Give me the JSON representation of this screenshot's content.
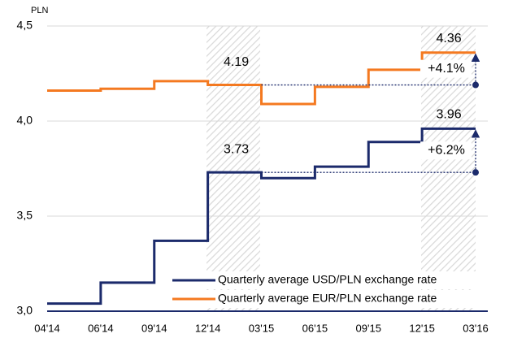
{
  "chart_data": {
    "type": "step",
    "y_label": "PLN",
    "categories": [
      "04'14",
      "06'14",
      "09'14",
      "12'14",
      "03'15",
      "06'15",
      "09'15",
      "12'15",
      "03'16"
    ],
    "series": [
      {
        "name": "Quarterly average USD/PLN exchange rate",
        "color": "#1b2a6b",
        "values": [
          3.04,
          3.15,
          3.37,
          3.73,
          3.7,
          3.76,
          3.89,
          3.96,
          3.96
        ]
      },
      {
        "name": "Quarterly average EUR/PLN exchange rate",
        "color": "#f47920",
        "values": [
          4.16,
          4.17,
          4.21,
          4.19,
          4.09,
          4.18,
          4.27,
          4.36,
          4.36
        ]
      }
    ],
    "ylim": [
      3.0,
      4.5
    ],
    "yticks": [
      {
        "value": 3.0,
        "label": "3,0"
      },
      {
        "value": 3.5,
        "label": "3,5"
      },
      {
        "value": 4.0,
        "label": "4,0"
      },
      {
        "value": 4.5,
        "label": "4,5"
      }
    ],
    "grid": true,
    "annotations": [
      "4.19",
      "4.36",
      "+4.1%",
      "3.73",
      "3.96",
      "+6.2%"
    ]
  }
}
